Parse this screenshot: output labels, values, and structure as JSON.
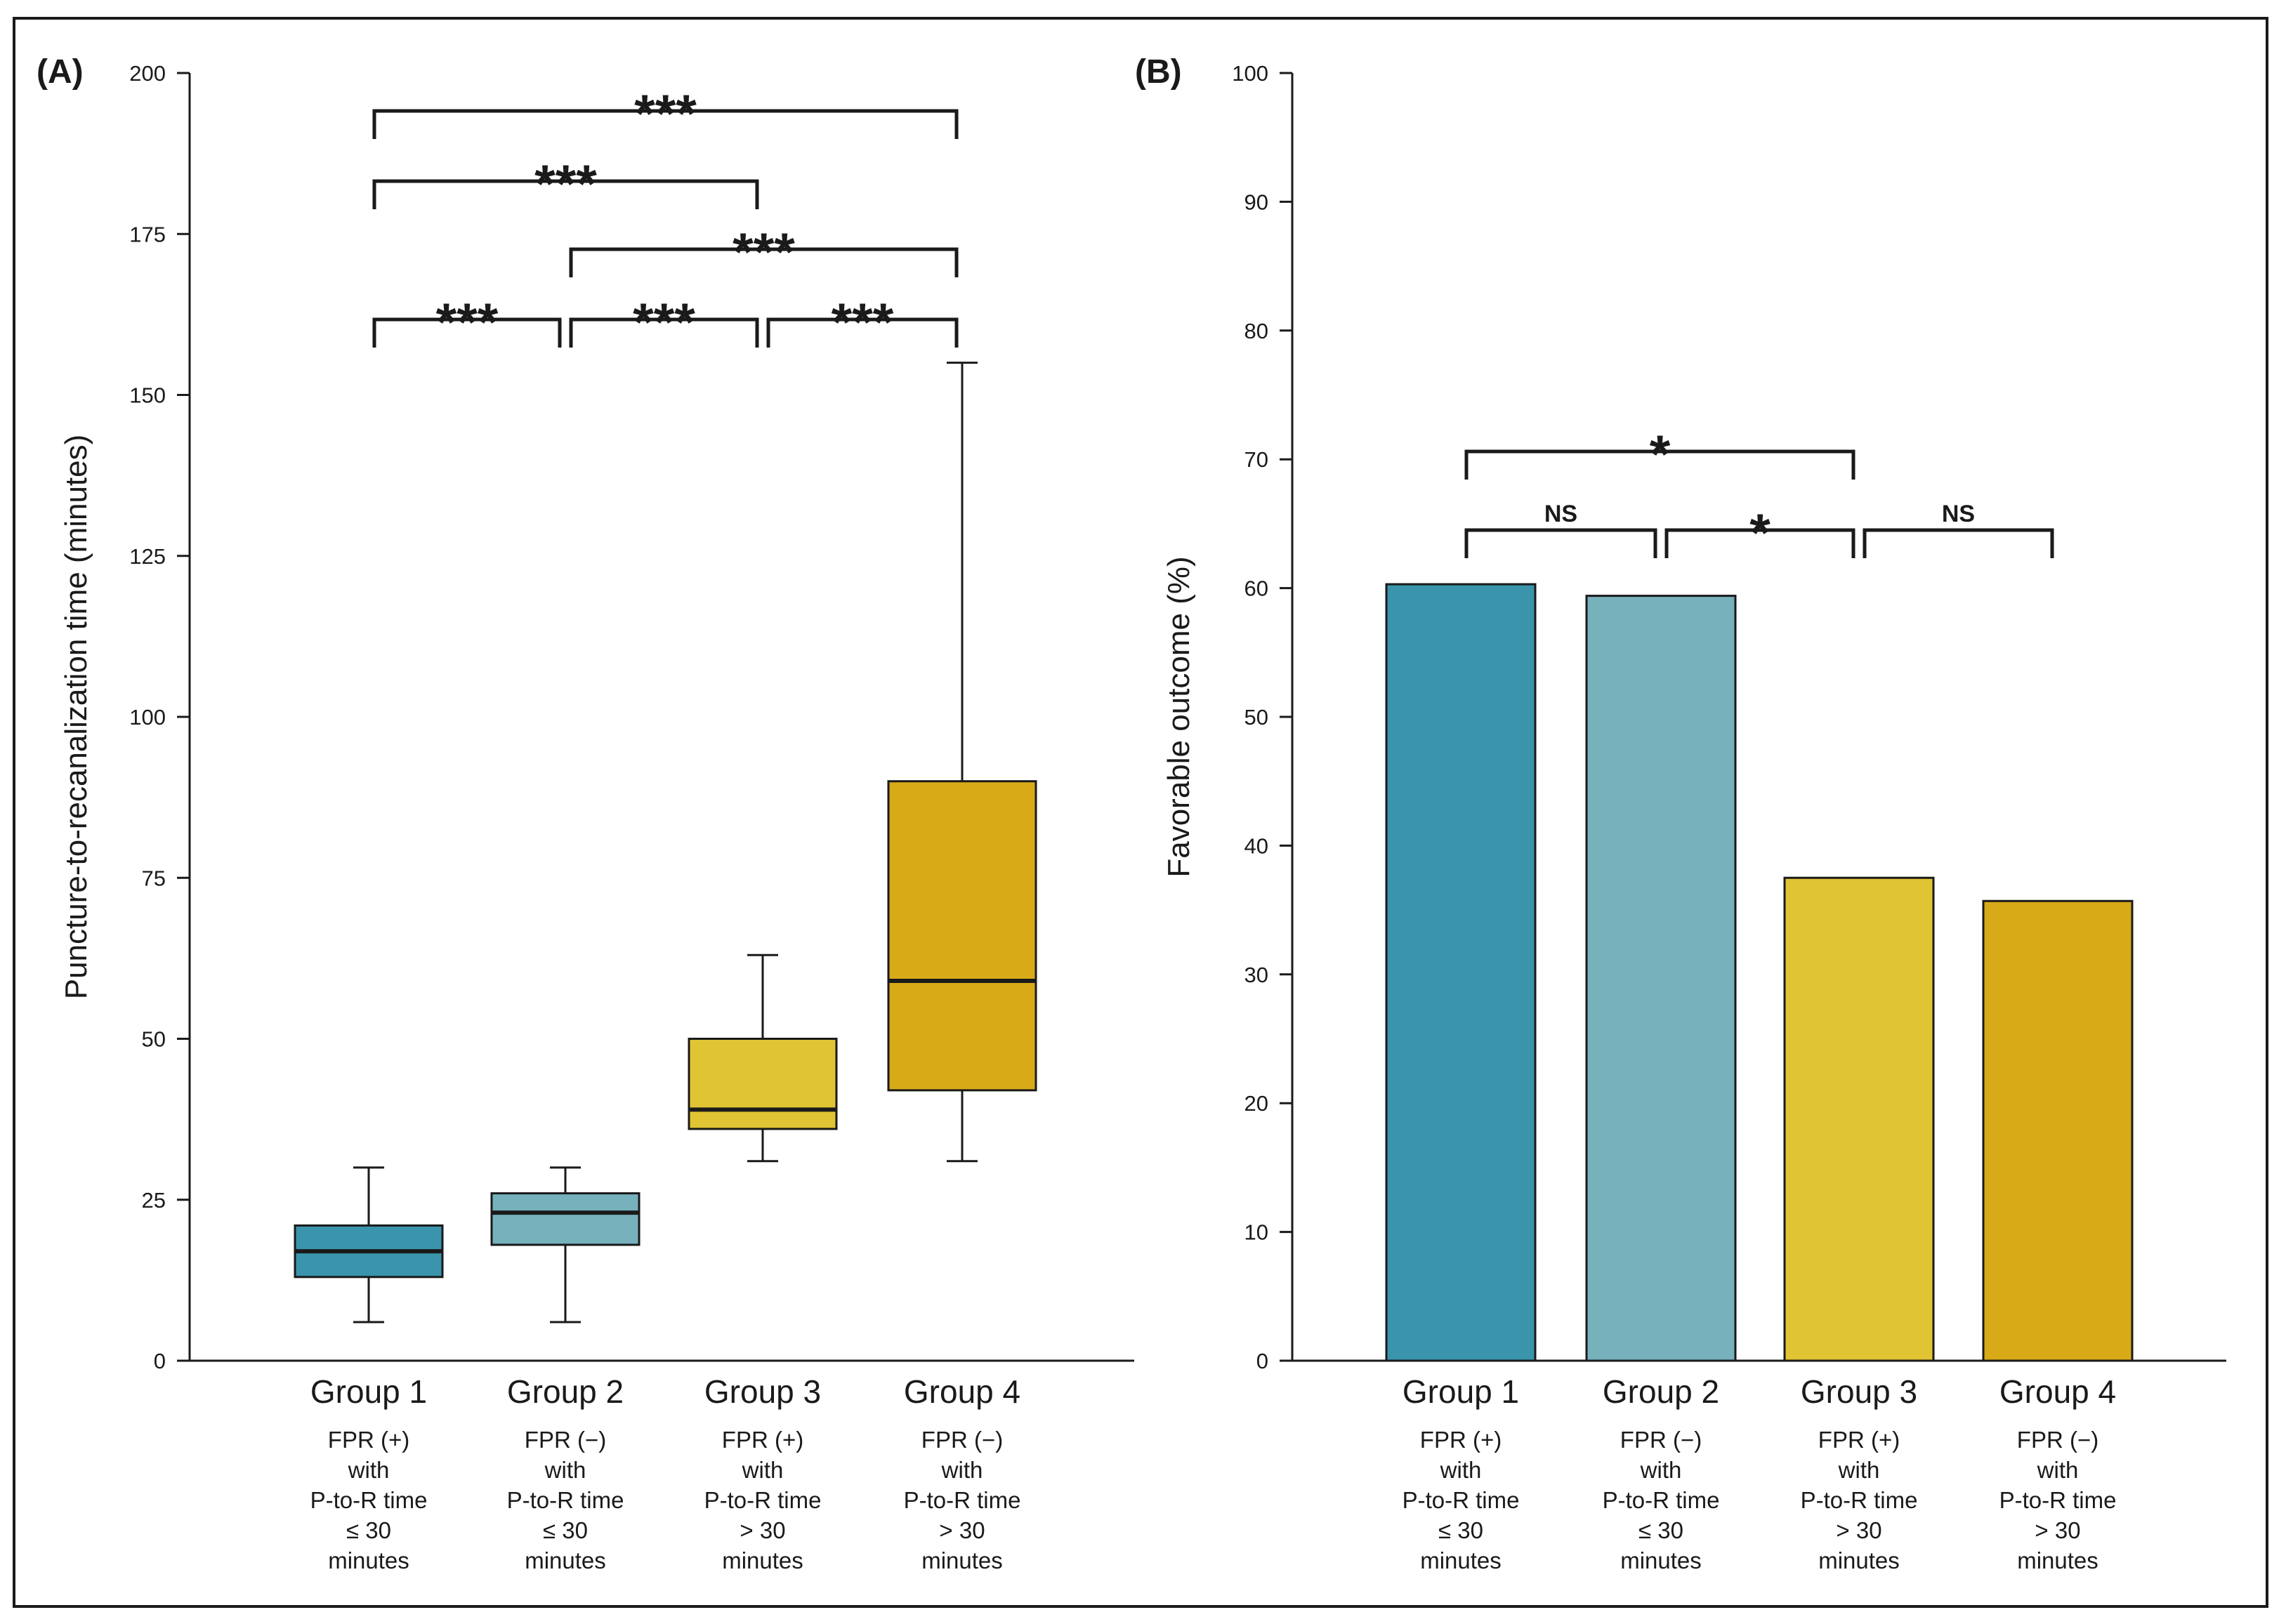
{
  "colors": {
    "group1": "#3a94ab",
    "group2": "#76b1bc",
    "group3": "#e1c433",
    "group4": "#d8aa18"
  },
  "chart_data": [
    {
      "panel": "(A)",
      "type": "box",
      "ylabel": "Puncture-to-recanalization time (minutes)",
      "ylim": [
        0,
        200
      ],
      "yticks": [
        0,
        25,
        50,
        75,
        100,
        125,
        150,
        175,
        200
      ],
      "categories": [
        "Group 1",
        "Group 2",
        "Group 3",
        "Group 4"
      ],
      "descriptions": [
        [
          "FPR (+)",
          "with",
          "P-to-R time",
          "≤ 30",
          "minutes"
        ],
        [
          "FPR (−)",
          "with",
          "P-to-R time",
          "≤ 30",
          "minutes"
        ],
        [
          "FPR (+)",
          "with",
          "P-to-R time",
          "> 30",
          "minutes"
        ],
        [
          "FPR (−)",
          "with",
          "P-to-R time",
          "> 30",
          "minutes"
        ]
      ],
      "boxes": [
        {
          "min": 6,
          "q1": 13,
          "median": 17,
          "q3": 21,
          "max": 30
        },
        {
          "min": 6,
          "q1": 18,
          "median": 23,
          "q3": 26,
          "max": 30
        },
        {
          "min": 31,
          "q1": 36,
          "median": 39,
          "q3": 50,
          "max": 63
        },
        {
          "min": 31,
          "q1": 42,
          "median": 59,
          "q3": 90,
          "max": 155
        }
      ],
      "comparisons": [
        {
          "from": 0,
          "to": 1,
          "label": "***"
        },
        {
          "from": 1,
          "to": 2,
          "label": "***"
        },
        {
          "from": 2,
          "to": 3,
          "label": "***"
        },
        {
          "from": 1,
          "to": 3,
          "label": "***"
        },
        {
          "from": 0,
          "to": 2,
          "label": "***"
        },
        {
          "from": 0,
          "to": 3,
          "label": "***"
        }
      ]
    },
    {
      "panel": "(B)",
      "type": "bar",
      "ylabel": "Favorable outcome (%)",
      "ylim": [
        0,
        100
      ],
      "yticks": [
        0,
        10,
        20,
        30,
        40,
        50,
        60,
        70,
        80,
        90,
        100
      ],
      "categories": [
        "Group 1",
        "Group 2",
        "Group 3",
        "Group 4"
      ],
      "descriptions": [
        [
          "FPR (+)",
          "with",
          "P-to-R time",
          "≤ 30",
          "minutes"
        ],
        [
          "FPR (−)",
          "with",
          "P-to-R time",
          "≤ 30",
          "minutes"
        ],
        [
          "FPR (+)",
          "with",
          "P-to-R time",
          "> 30",
          "minutes"
        ],
        [
          "FPR (−)",
          "with",
          "P-to-R time",
          "> 30",
          "minutes"
        ]
      ],
      "values": [
        60.3,
        59.4,
        37.5,
        35.7
      ],
      "comparisons": [
        {
          "from": 0,
          "to": 1,
          "label": "NS"
        },
        {
          "from": 1,
          "to": 2,
          "label": "*"
        },
        {
          "from": 2,
          "to": 3,
          "label": "NS"
        },
        {
          "from": 0,
          "to": 2,
          "label": "*"
        }
      ]
    }
  ]
}
